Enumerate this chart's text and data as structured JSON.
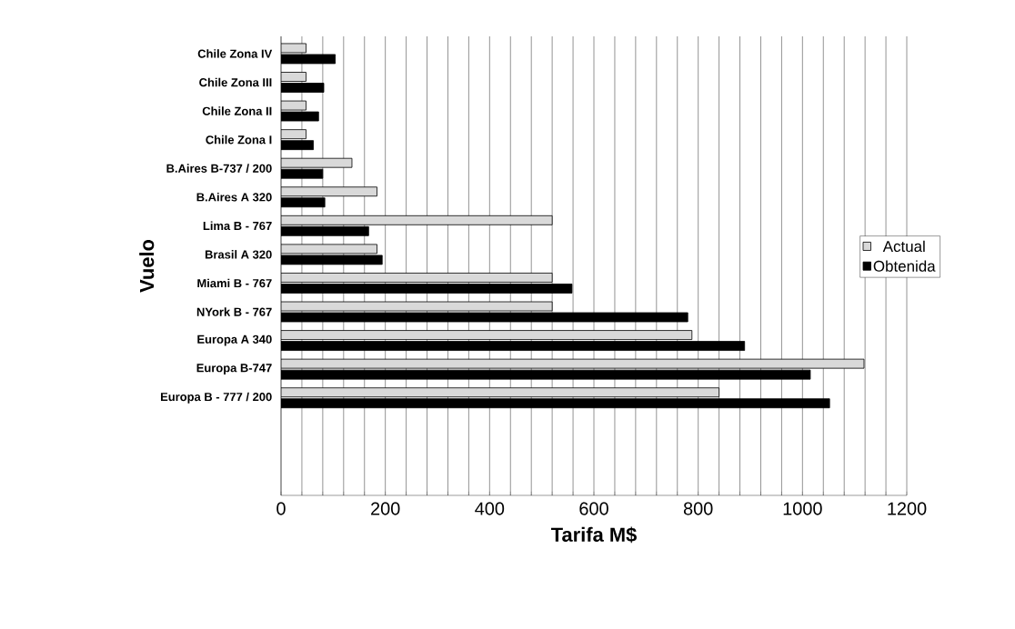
{
  "chart_data": {
    "type": "bar",
    "orientation": "horizontal",
    "xlabel": "Tarifa M$",
    "ylabel": "Vuelo",
    "categories": [
      "Chile Zona IV",
      "Chile Zona III",
      "Chile Zona II",
      "Chile Zona I",
      "B.Aires B-737 / 200",
      "B.Aires A 320",
      "Lima B - 767",
      "Brasil A 320",
      "Miami B - 767",
      "NYork B - 767",
      "Europa A 340",
      "Europa B-747",
      "Europa B - 777 / 200"
    ],
    "series": [
      {
        "name": "Actual",
        "color": "#d9d9d9",
        "values": [
          48,
          48,
          48,
          48,
          136,
          184,
          520,
          184,
          520,
          520,
          788,
          1118,
          840
        ]
      },
      {
        "name": "Obtenida",
        "color": "#000000",
        "values": [
          104,
          82,
          72,
          62,
          80,
          84,
          168,
          194,
          558,
          780,
          889,
          1015,
          1052
        ]
      }
    ],
    "xlim": [
      0,
      1200
    ],
    "xticks": [
      0,
      {
        "value": 40,
        "label": null
      },
      {
        "value": 80,
        "label": null
      },
      {
        "value": 120,
        "label": null
      },
      {
        "value": 160,
        "label": null
      },
      200,
      {
        "value": 240,
        "label": null
      },
      {
        "value": 280,
        "label": null
      },
      {
        "value": 320,
        "label": null
      },
      {
        "value": 360,
        "label": null
      },
      400,
      {
        "value": 440,
        "label": null
      },
      {
        "value": 480,
        "label": null
      },
      {
        "value": 520,
        "label": null
      },
      {
        "value": 560,
        "label": null
      },
      600,
      {
        "value": 640,
        "label": null
      },
      {
        "value": 680,
        "label": null
      },
      {
        "value": 720,
        "label": null
      },
      {
        "value": 760,
        "label": null
      },
      800,
      {
        "value": 840,
        "label": null
      },
      {
        "value": 880,
        "label": null
      },
      {
        "value": 920,
        "label": null
      },
      {
        "value": 960,
        "label": null
      },
      1000,
      {
        "value": 1040,
        "label": null
      },
      {
        "value": 1080,
        "label": null
      },
      {
        "value": 1120,
        "label": null
      },
      {
        "value": 1160,
        "label": null
      },
      1200
    ],
    "grid": "x",
    "legend": "right"
  }
}
